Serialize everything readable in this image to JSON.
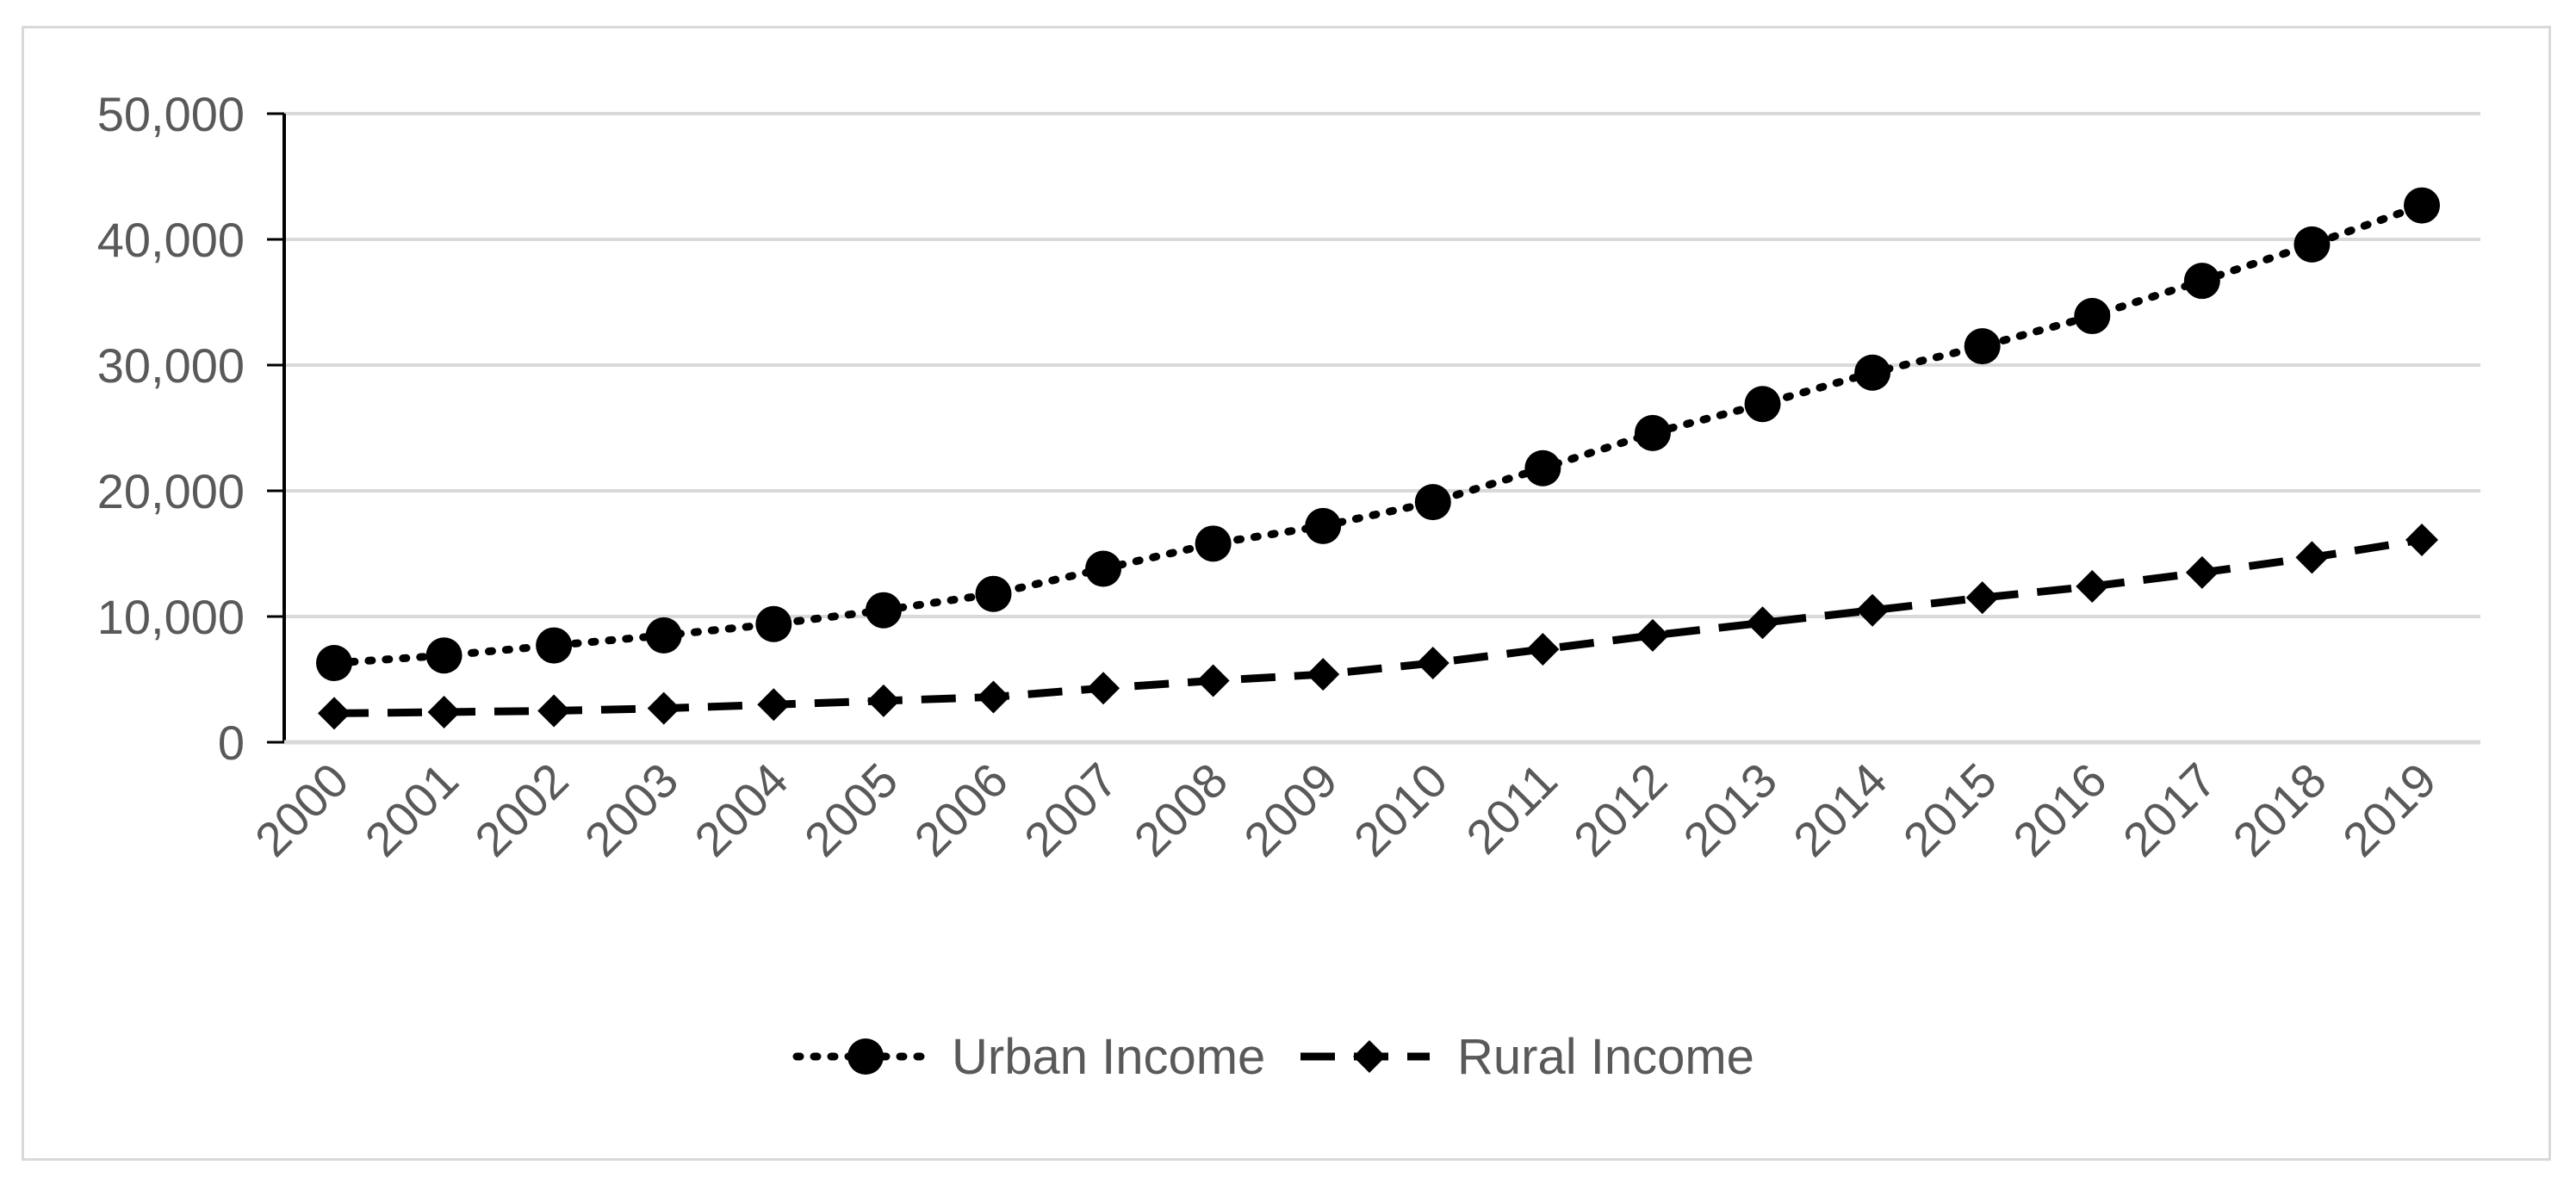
{
  "chart_data": {
    "type": "line",
    "title": "",
    "xlabel": "",
    "ylabel": "",
    "categories": [
      "2000",
      "2001",
      "2002",
      "2003",
      "2004",
      "2005",
      "2006",
      "2007",
      "2008",
      "2009",
      "2010",
      "2011",
      "2012",
      "2013",
      "2014",
      "2015",
      "2016",
      "2017",
      "2018",
      "2019"
    ],
    "ylim": [
      0,
      50000
    ],
    "yticks": [
      0,
      10000,
      20000,
      30000,
      40000,
      50000
    ],
    "ytick_labels": [
      "0",
      "10,000",
      "20,000",
      "30,000",
      "40,000",
      "50,000"
    ],
    "grid": "horizontal",
    "legend_position": "bottom",
    "series": [
      {
        "name": "Urban Income",
        "line_style": "dotted",
        "marker": "circle",
        "color": "#000000",
        "values": [
          6300,
          6900,
          7700,
          8500,
          9400,
          10500,
          11800,
          13800,
          15800,
          17200,
          19100,
          21800,
          24600,
          26900,
          29400,
          31500,
          33900,
          36700,
          39600,
          42700
        ]
      },
      {
        "name": "Rural Income",
        "line_style": "dashed",
        "marker": "diamond",
        "color": "#000000",
        "values": [
          2300,
          2400,
          2500,
          2700,
          3000,
          3300,
          3600,
          4300,
          4900,
          5400,
          6300,
          7400,
          8500,
          9500,
          10500,
          11500,
          12400,
          13500,
          14700,
          16100
        ]
      }
    ],
    "colors": {
      "axis_text": "#595959",
      "gridline": "#d9d9d9",
      "axis_line": "#000000",
      "frame": "#d9d9d9"
    }
  }
}
